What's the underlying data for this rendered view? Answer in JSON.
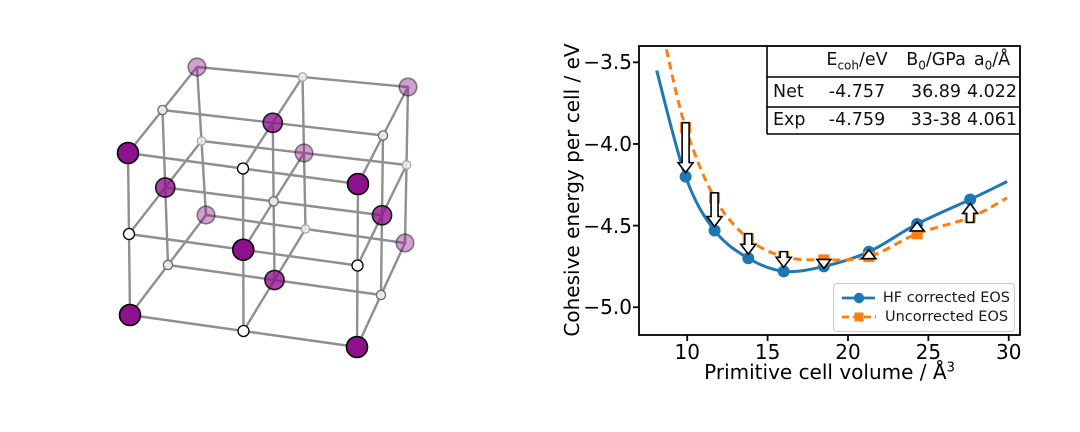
{
  "lattice": {
    "grid_points": 3,
    "corners": {
      "c000": [
        130,
        315
      ],
      "c200": [
        357,
        347
      ],
      "c020": [
        206,
        215
      ],
      "c220": [
        405,
        243
      ],
      "c002": [
        128,
        153
      ],
      "c202": [
        358,
        184
      ],
      "c022": [
        197,
        67
      ],
      "c222": [
        408,
        87
      ]
    },
    "bond": {
      "color": "#8f8f8f",
      "width": 2.4
    },
    "purple_atom": {
      "fill": "#8d118d",
      "edge": "#000000",
      "radii": [
        10.5,
        9.6,
        8.8
      ],
      "alphas": [
        1.0,
        0.78,
        0.4
      ]
    },
    "white_atom": {
      "fills": [
        "#ffffff",
        "#ebebeb",
        "#f3f3f3"
      ],
      "edges": [
        "#000000",
        "#6a6a6a",
        "#a5a5a5"
      ],
      "radii": [
        5.5,
        4.6,
        4.2
      ],
      "alphas": [
        1.0,
        0.95,
        0.85
      ]
    }
  },
  "chart_data": {
    "type": "line",
    "title": "",
    "xlabel": "Primitive cell volume / Å³",
    "xlabel_base": "Primitive cell volume / Å",
    "xlabel_sup": "3",
    "ylabel": "Cohesive energy per cell / eV",
    "xlim": [
      7.0,
      30.7
    ],
    "ylim": [
      -5.17,
      -3.4
    ],
    "xticks": [
      10,
      15,
      20,
      25,
      30
    ],
    "xtick_labels": [
      "10",
      "15",
      "20",
      "25",
      "30"
    ],
    "yticks": [
      -3.5,
      -4.0,
      -4.5,
      -5.0
    ],
    "ytick_labels": [
      "−3.5",
      "−4.0",
      "−4.5",
      "−5.0"
    ],
    "grid": false,
    "x": [
      9.9,
      11.7,
      13.8,
      16.0,
      18.5,
      21.3,
      24.3,
      27.6
    ],
    "series": [
      {
        "name": "HF corrected EOS",
        "color": "#1f77b4",
        "marker": "circle",
        "line": "solid",
        "values": [
          -4.2,
          -4.53,
          -4.7,
          -4.78,
          -4.75,
          -4.66,
          -4.49,
          -4.34
        ],
        "curve_left_end": [
          8.1,
          -3.55
        ],
        "curve_right_end": [
          29.9,
          -4.23
        ]
      },
      {
        "name": "Uncorrected EOS",
        "color": "#ff7f0e",
        "marker": "square",
        "line": "dashed",
        "values": [
          -3.9,
          -4.33,
          -4.58,
          -4.69,
          -4.71,
          -4.69,
          -4.55,
          -4.45
        ],
        "curve_left_end": [
          8.7,
          -3.42
        ],
        "curve_right_end": [
          29.9,
          -4.33
        ]
      }
    ],
    "arrows": {
      "from_series": "Uncorrected EOS",
      "to_series": "HF corrected EOS",
      "fill": "#ffffff",
      "outline": "#000000"
    },
    "legend": {
      "position": "lower right",
      "entries": [
        "HF corrected EOS",
        "Uncorrected EOS"
      ]
    },
    "inset_table": {
      "header": [
        {
          "base": "E",
          "sub": "coh",
          "rest": "/eV"
        },
        {
          "base": "B",
          "sub": "0",
          "rest": "/GPa"
        },
        {
          "base": "a",
          "sub": "0",
          "rest": "/Å"
        }
      ],
      "rows": [
        [
          "Net",
          "-4.757",
          "36.89",
          "4.022"
        ],
        [
          "Exp",
          "-4.759",
          "33-38",
          "4.061"
        ]
      ]
    }
  }
}
